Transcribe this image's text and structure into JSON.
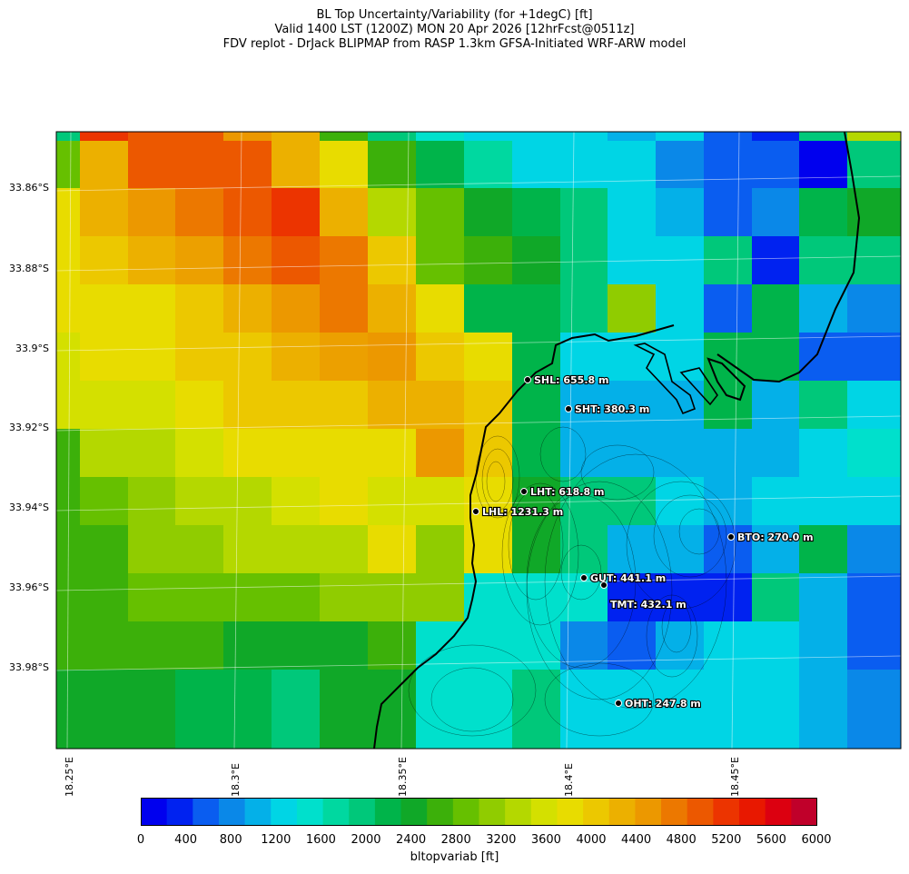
{
  "header": {
    "line1": "BL Top Uncertainty/Variability (for +1degC) [ft]",
    "line2": "Valid 1400 LST (1200Z) MON 20 Apr 2026 [12hrFcst@0511z]",
    "line3": "FDV replot - DrJack BLIPMAP from RASP 1.3km GFSA-Initiated WRF-ARW model"
  },
  "lat_labels": [
    "33.86°S",
    "33.88°S",
    "33.9°S",
    "33.92°S",
    "33.94°S",
    "33.96°S",
    "33.98°S"
  ],
  "lon_labels": [
    "18.25°E",
    "18.3°E",
    "18.35°E",
    "18.4°E",
    "18.45°E"
  ],
  "stations": [
    {
      "code": "SHL",
      "label": "SHL: 655.8 m"
    },
    {
      "code": "SHT",
      "label": "SHT: 380.3 m"
    },
    {
      "code": "LHT",
      "label": "LHT: 618.8 m"
    },
    {
      "code": "LHL",
      "label": "LHL: 1231.3 m"
    },
    {
      "code": "BTO",
      "label": "BTO: 270.0 m"
    },
    {
      "code": "GUT",
      "label": "GUT: 441.1 m"
    },
    {
      "code": "TMT",
      "label": "TMT: 432.1 m"
    },
    {
      "code": "OHT",
      "label": "OHT: 247.8 m"
    }
  ],
  "colorbar": {
    "label": "bltopvariab [ft]",
    "ticks": [
      "0",
      "400",
      "800",
      "1200",
      "1600",
      "2000",
      "2400",
      "2800",
      "3200",
      "3600",
      "4000",
      "4400",
      "4800",
      "5200",
      "5600",
      "6000"
    ],
    "colors": [
      "#0000ee",
      "#0022f0",
      "#0a5df0",
      "#0a88e8",
      "#04b0e8",
      "#00d5e5",
      "#00e0cc",
      "#00d8a0",
      "#00c87a",
      "#00b44a",
      "#10a828",
      "#3cb00a",
      "#66c000",
      "#90cc00",
      "#b4d800",
      "#d4e000",
      "#e8dc00",
      "#ecc800",
      "#ecb000",
      "#ec9800",
      "#ec7800",
      "#ec5800",
      "#ec3400",
      "#e81800",
      "#dc0010",
      "#c0002a"
    ]
  },
  "grid_colors": [
    [
      "#00c87a",
      "#ec3400",
      "#ec5800",
      "#ec5800",
      "#ec9800",
      "#ecb000",
      "#3cb00a",
      "#00c87a",
      "#00e0cc",
      "#00d5e5",
      "#00d5e5",
      "#00d5e5",
      "#04b0e8",
      "#00d5e5",
      "#0a5df0",
      "#0022f0",
      "#00c87a",
      "#b4d800"
    ],
    [
      "#66c000",
      "#ecb000",
      "#ec5800",
      "#ec5800",
      "#ec5800",
      "#ecb000",
      "#e8dc00",
      "#3cb00a",
      "#00b44a",
      "#00d8a0",
      "#00d5e5",
      "#00d5e5",
      "#00d5e5",
      "#0a88e8",
      "#0a5df0",
      "#0a5df0",
      "#0000ee",
      "#00c87a"
    ],
    [
      "#e8dc00",
      "#ecb000",
      "#ec9800",
      "#ec7800",
      "#ec5800",
      "#ec3400",
      "#ecb000",
      "#b4d800",
      "#66c000",
      "#10a828",
      "#00b44a",
      "#00c87a",
      "#00d5e5",
      "#04b0e8",
      "#0a5df0",
      "#0a88e8",
      "#00b44a",
      "#10a828"
    ],
    [
      "#e8dc00",
      "#ecc800",
      "#ecb000",
      "#eca000",
      "#ec7800",
      "#ec5800",
      "#ec7800",
      "#ecc800",
      "#66c000",
      "#3cb00a",
      "#10a828",
      "#00c87a",
      "#00d5e5",
      "#00d5e5",
      "#00c87a",
      "#0022f0",
      "#00c87a",
      "#00c87a"
    ],
    [
      "#e8dc00",
      "#e8dc00",
      "#e8dc00",
      "#ecc800",
      "#ecb000",
      "#ec9800",
      "#ec7800",
      "#ecb000",
      "#e8dc00",
      "#00b44a",
      "#00b44a",
      "#00c87a",
      "#90cc00",
      "#00d5e5",
      "#0a5df0",
      "#00b44a",
      "#04b0e8",
      "#0a88e8"
    ],
    [
      "#d4e000",
      "#e8dc00",
      "#e8dc00",
      "#ecc800",
      "#ecc800",
      "#ecb000",
      "#eca000",
      "#ec9800",
      "#ecc800",
      "#e8dc00",
      "#00b44a",
      "#00d5e5",
      "#00d5e5",
      "#00d5e5",
      "#00b44a",
      "#00b44a",
      "#0a5df0",
      "#0a5df0"
    ],
    [
      "#d4e000",
      "#d4e000",
      "#d4e000",
      "#e8dc00",
      "#ecc800",
      "#ecc800",
      "#ecc800",
      "#ecb000",
      "#ecb000",
      "#ecc800",
      "#00b44a",
      "#04b0e8",
      "#04b0e8",
      "#04b0e8",
      "#00b44a",
      "#04b0e8",
      "#00c87a",
      "#00d5e5"
    ],
    [
      "#3cb00a",
      "#b4d800",
      "#b4d800",
      "#d4e000",
      "#e8dc00",
      "#e8dc00",
      "#e8dc00",
      "#e8dc00",
      "#ec9800",
      "#ecc800",
      "#00b44a",
      "#04b0e8",
      "#04b0e8",
      "#04b0e8",
      "#04b0e8",
      "#04b0e8",
      "#00d5e5",
      "#00e0cc"
    ],
    [
      "#3cb00a",
      "#66c000",
      "#90cc00",
      "#b4d800",
      "#b4d800",
      "#d4e000",
      "#e8dc00",
      "#d4e000",
      "#d4e000",
      "#e8dc00",
      "#10a828",
      "#00c87a",
      "#00c87a",
      "#00d5e5",
      "#04b0e8",
      "#00d5e5",
      "#00d5e5",
      "#00d5e5"
    ],
    [
      "#3cb00a",
      "#3cb00a",
      "#90cc00",
      "#90cc00",
      "#b4d800",
      "#b4d800",
      "#b4d800",
      "#e8dc00",
      "#90cc00",
      "#e8dc00",
      "#10a828",
      "#00c87a",
      "#04b0e8",
      "#04b0e8",
      "#0a5df0",
      "#04b0e8",
      "#00b44a",
      "#0a88e8"
    ],
    [
      "#3cb00a",
      "#3cb00a",
      "#66c000",
      "#66c000",
      "#66c000",
      "#66c000",
      "#90cc00",
      "#90cc00",
      "#90cc00",
      "#00e0cc",
      "#00e0cc",
      "#00e0cc",
      "#0022f0",
      "#0022f0",
      "#0022f0",
      "#00c87a",
      "#04b0e8",
      "#0a5df0"
    ],
    [
      "#3cb00a",
      "#3cb00a",
      "#3cb00a",
      "#3cb00a",
      "#10a828",
      "#10a828",
      "#10a828",
      "#3cb00a",
      "#00e0cc",
      "#00e0cc",
      "#00e0cc",
      "#0a88e8",
      "#0a5df0",
      "#04b0e8",
      "#00d5e5",
      "#00d5e5",
      "#04b0e8",
      "#0a5df0"
    ],
    [
      "#10a828",
      "#10a828",
      "#10a828",
      "#00b44a",
      "#00b44a",
      "#00c87a",
      "#10a828",
      "#10a828",
      "#00e0cc",
      "#00e0cc",
      "#00c87a",
      "#00d5e5",
      "#00d5e5",
      "#00d5e5",
      "#00d5e5",
      "#00d5e5",
      "#04b0e8",
      "#0a88e8"
    ]
  ]
}
